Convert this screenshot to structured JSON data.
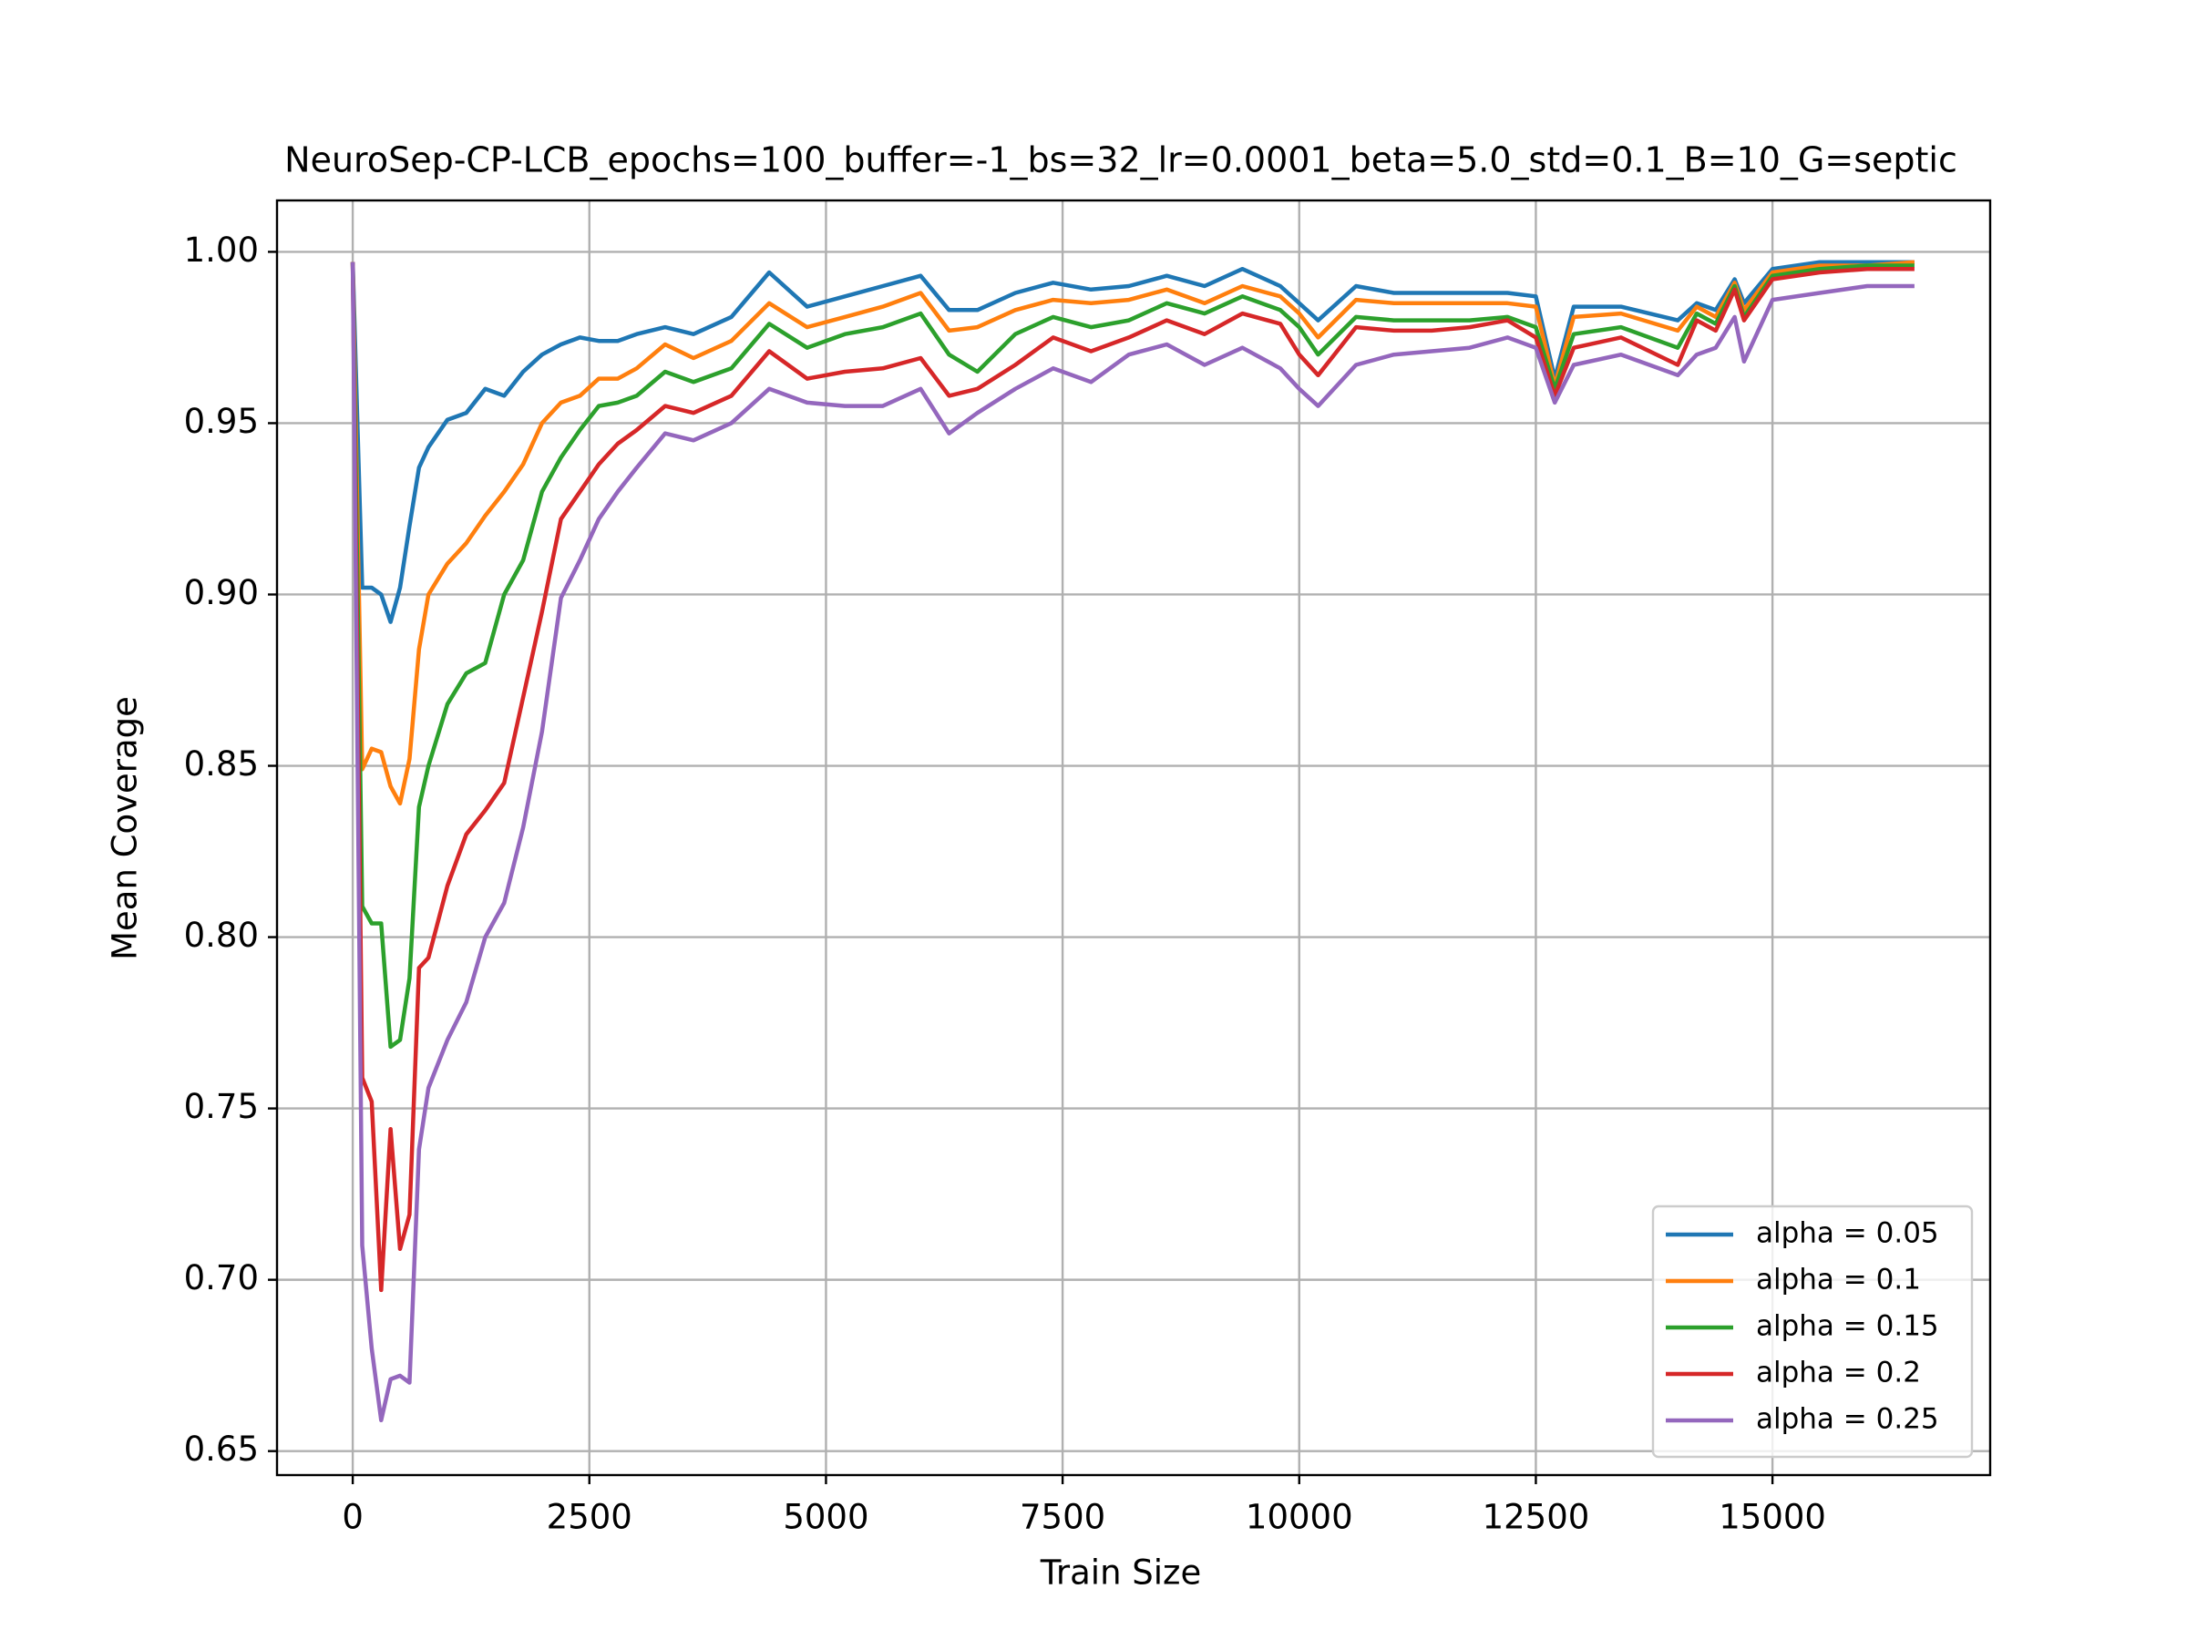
{
  "chart_data": {
    "type": "line",
    "title": "NeuroSep-CP-LCB_epochs=100_buffer=-1_bs=32_lr=0.0001_beta=5.0_std=0.1_B=10_G=septic",
    "x_label": "Train Size",
    "y_label": "Mean Coverage",
    "x": [
      0,
      100,
      200,
      300,
      400,
      500,
      600,
      700,
      800,
      1000,
      1200,
      1400,
      1600,
      1800,
      2000,
      2200,
      2400,
      2600,
      2800,
      3000,
      3300,
      3600,
      4000,
      4400,
      4800,
      5200,
      5600,
      6000,
      6300,
      6600,
      7000,
      7400,
      7800,
      8200,
      8600,
      9000,
      9400,
      9800,
      10000,
      10200,
      10600,
      11000,
      11400,
      11800,
      12200,
      12500,
      12700,
      12900,
      13400,
      14000,
      14200,
      14400,
      14600,
      14700,
      15000,
      15500,
      16000,
      16500
    ],
    "series": [
      {
        "name": "alpha = 0.05",
        "color": "#1f77b4",
        "values": [
          0.997,
          0.902,
          0.902,
          0.9,
          0.892,
          0.902,
          0.92,
          0.937,
          0.943,
          0.951,
          0.953,
          0.96,
          0.958,
          0.965,
          0.97,
          0.973,
          0.975,
          0.974,
          0.974,
          0.976,
          0.978,
          0.976,
          0.981,
          0.994,
          0.984,
          0.987,
          0.99,
          0.993,
          0.983,
          0.983,
          0.988,
          0.991,
          0.989,
          0.99,
          0.993,
          0.99,
          0.995,
          0.99,
          0.985,
          0.98,
          0.99,
          0.988,
          0.988,
          0.988,
          0.988,
          0.987,
          0.963,
          0.984,
          0.984,
          0.98,
          0.985,
          0.983,
          0.992,
          0.985,
          0.995,
          0.997,
          0.997,
          0.997
        ]
      },
      {
        "name": "alpha = 0.1",
        "color": "#ff7f0e",
        "values": [
          0.997,
          0.849,
          0.855,
          0.854,
          0.844,
          0.839,
          0.852,
          0.884,
          0.9,
          0.909,
          0.915,
          0.923,
          0.93,
          0.938,
          0.95,
          0.956,
          0.958,
          0.963,
          0.963,
          0.966,
          0.973,
          0.969,
          0.974,
          0.985,
          0.978,
          0.981,
          0.984,
          0.988,
          0.977,
          0.978,
          0.983,
          0.986,
          0.985,
          0.986,
          0.989,
          0.985,
          0.99,
          0.987,
          0.982,
          0.975,
          0.986,
          0.985,
          0.985,
          0.985,
          0.985,
          0.984,
          0.961,
          0.981,
          0.982,
          0.977,
          0.984,
          0.981,
          0.991,
          0.983,
          0.994,
          0.996,
          0.996,
          0.997
        ]
      },
      {
        "name": "alpha = 0.15",
        "color": "#2ca02c",
        "values": [
          0.997,
          0.809,
          0.804,
          0.804,
          0.768,
          0.77,
          0.788,
          0.838,
          0.85,
          0.868,
          0.877,
          0.88,
          0.9,
          0.91,
          0.93,
          0.94,
          0.948,
          0.955,
          0.956,
          0.958,
          0.965,
          0.962,
          0.966,
          0.979,
          0.972,
          0.976,
          0.978,
          0.982,
          0.97,
          0.965,
          0.976,
          0.981,
          0.978,
          0.98,
          0.985,
          0.982,
          0.987,
          0.983,
          0.978,
          0.97,
          0.981,
          0.98,
          0.98,
          0.98,
          0.981,
          0.978,
          0.96,
          0.976,
          0.978,
          0.972,
          0.982,
          0.979,
          0.99,
          0.981,
          0.993,
          0.995,
          0.996,
          0.996
        ]
      },
      {
        "name": "alpha = 0.2",
        "color": "#d62728",
        "values": [
          0.997,
          0.759,
          0.752,
          0.697,
          0.744,
          0.709,
          0.719,
          0.791,
          0.794,
          0.815,
          0.83,
          0.837,
          0.845,
          0.87,
          0.895,
          0.922,
          0.93,
          0.938,
          0.944,
          0.948,
          0.955,
          0.953,
          0.958,
          0.971,
          0.963,
          0.965,
          0.966,
          0.969,
          0.958,
          0.96,
          0.967,
          0.975,
          0.971,
          0.975,
          0.98,
          0.976,
          0.982,
          0.979,
          0.97,
          0.964,
          0.978,
          0.977,
          0.977,
          0.978,
          0.98,
          0.975,
          0.958,
          0.972,
          0.975,
          0.967,
          0.98,
          0.977,
          0.989,
          0.98,
          0.992,
          0.994,
          0.995,
          0.995
        ]
      },
      {
        "name": "alpha = 0.25",
        "color": "#9467bd",
        "values": [
          0.997,
          0.71,
          0.68,
          0.659,
          0.671,
          0.672,
          0.67,
          0.738,
          0.756,
          0.77,
          0.781,
          0.8,
          0.81,
          0.832,
          0.86,
          0.899,
          0.91,
          0.922,
          0.93,
          0.937,
          0.947,
          0.945,
          0.95,
          0.96,
          0.956,
          0.955,
          0.955,
          0.96,
          0.947,
          0.953,
          0.96,
          0.966,
          0.962,
          0.97,
          0.973,
          0.967,
          0.972,
          0.966,
          0.96,
          0.955,
          0.967,
          0.97,
          0.971,
          0.972,
          0.975,
          0.972,
          0.956,
          0.967,
          0.97,
          0.964,
          0.97,
          0.972,
          0.981,
          0.968,
          0.986,
          0.988,
          0.99,
          0.99
        ]
      }
    ],
    "xlim": [
      -800,
      17300
    ],
    "ylim": [
      0.643,
      1.015
    ],
    "xticks": [
      0,
      2500,
      5000,
      7500,
      10000,
      12500,
      15000
    ],
    "yticks": [
      0.65,
      {
        "value": 0.7,
        "label": "0.70"
      },
      0.75,
      {
        "value": 0.8,
        "label": "0.80"
      },
      0.85,
      {
        "value": 0.9,
        "label": "0.90"
      },
      0.95,
      {
        "value": 1.0,
        "label": "1.00"
      }
    ],
    "grid": true,
    "legend": "lower right"
  }
}
